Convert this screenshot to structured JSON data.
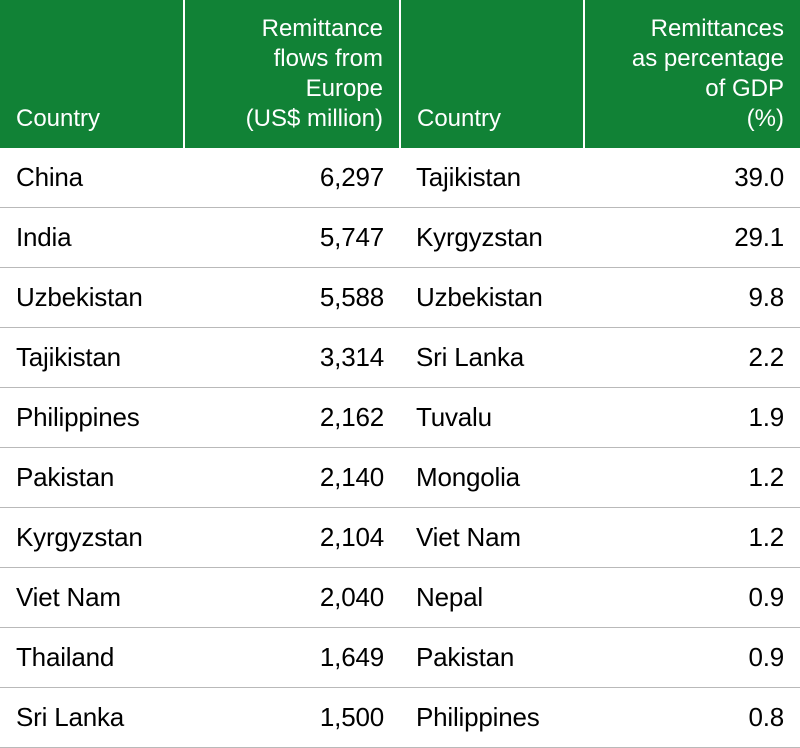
{
  "table": {
    "type": "table",
    "header_bg": "#118236",
    "header_text_color": "#ffffff",
    "header_fontsize": 24,
    "body_fontsize": 26,
    "body_text_color": "#000000",
    "row_border_color": "#b9b9b9",
    "columns": [
      {
        "label": "Country",
        "align": "left"
      },
      {
        "label": "Remittance flows from Europe (US$ million)",
        "align": "right"
      },
      {
        "label": "Country",
        "align": "left"
      },
      {
        "label": "Remittances as percentage of GDP (%)",
        "align": "right"
      }
    ],
    "header_lines": {
      "c1": [
        "Remittance",
        "flows from",
        "Europe",
        "(US$ million)"
      ],
      "c3": [
        "Remittances",
        "as percentage",
        "of GDP",
        "(%)"
      ]
    },
    "rows": [
      {
        "country_a": "China",
        "value_a": "6,297",
        "country_b": "Tajikistan",
        "value_b": "39.0"
      },
      {
        "country_a": "India",
        "value_a": "5,747",
        "country_b": "Kyrgyzstan",
        "value_b": "29.1"
      },
      {
        "country_a": "Uzbekistan",
        "value_a": "5,588",
        "country_b": "Uzbekistan",
        "value_b": "9.8"
      },
      {
        "country_a": "Tajikistan",
        "value_a": "3,314",
        "country_b": "Sri Lanka",
        "value_b": "2.2"
      },
      {
        "country_a": "Philippines",
        "value_a": "2,162",
        "country_b": "Tuvalu",
        "value_b": "1.9"
      },
      {
        "country_a": "Pakistan",
        "value_a": "2,140",
        "country_b": "Mongolia",
        "value_b": "1.2"
      },
      {
        "country_a": "Kyrgyzstan",
        "value_a": "2,104",
        "country_b": "Viet Nam",
        "value_b": "1.2"
      },
      {
        "country_a": "Viet Nam",
        "value_a": "2,040",
        "country_b": "Nepal",
        "value_b": "0.9"
      },
      {
        "country_a": "Thailand",
        "value_a": "1,649",
        "country_b": "Pakistan",
        "value_b": "0.9"
      },
      {
        "country_a": "Sri Lanka",
        "value_a": "1,500",
        "country_b": "Philippines",
        "value_b": "0.8"
      }
    ]
  }
}
